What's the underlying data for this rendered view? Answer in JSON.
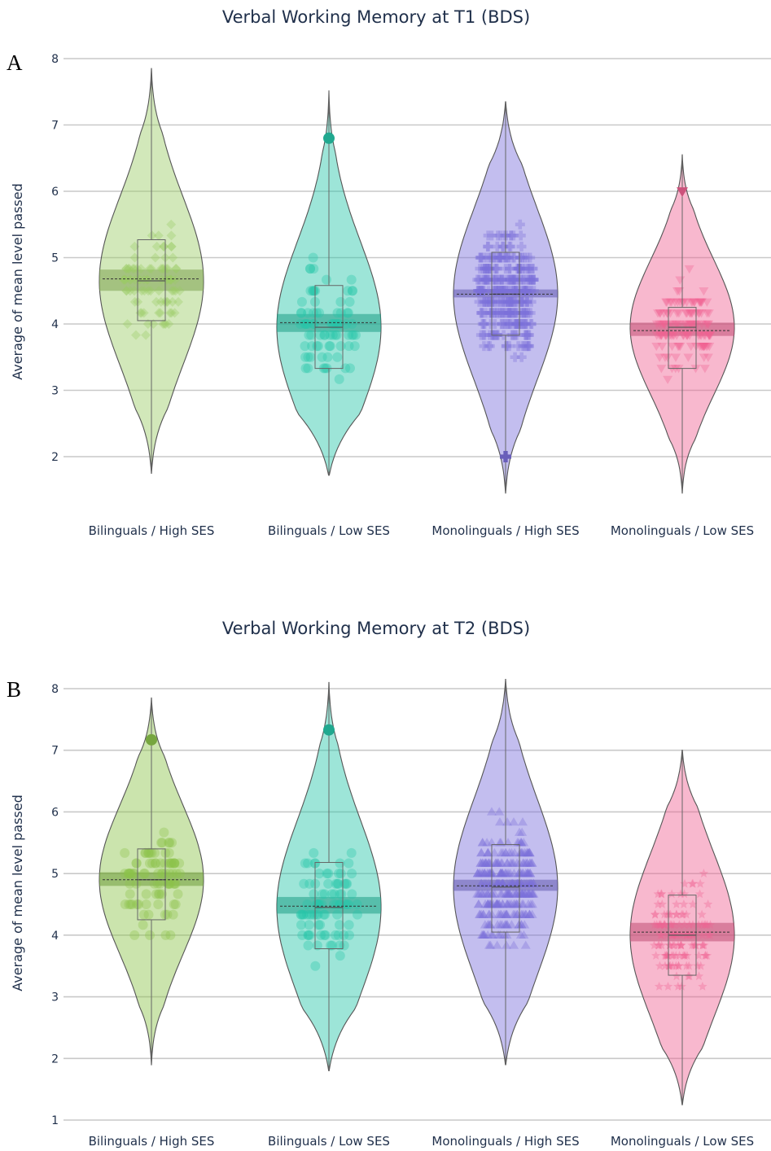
{
  "chart_data": [
    {
      "panel_label": "A",
      "type": "violin",
      "title": "Verbal Working Memory at T1 (BDS)",
      "ylabel": "Average of mean level passed",
      "xlabel": "",
      "ylim": [
        1.55,
        8.1
      ],
      "yticks": [
        2,
        3,
        4,
        5,
        6,
        7,
        8
      ],
      "grid": true,
      "categories": [
        "Bilinguals / High SES",
        "Bilinguals / Low SES",
        "Monolinguals / High SES",
        "Monolinguals / Low SES"
      ],
      "series": [
        {
          "category": "Bilinguals / High SES",
          "color": "#9ccc65",
          "marker": "diamond",
          "kde_min": 1.75,
          "kde_max": 7.85,
          "median": 4.65,
          "q1": 4.05,
          "q3": 5.27,
          "mean": 4.68,
          "ci": [
            4.5,
            4.82
          ],
          "outlier": null,
          "point_min": 2.5,
          "point_max": 7.1,
          "n_points": 90
        },
        {
          "category": "Bilinguals / Low SES",
          "color": "#26c6a8",
          "marker": "circle",
          "kde_min": 1.72,
          "kde_max": 7.52,
          "median": 3.95,
          "q1": 3.33,
          "q3": 4.58,
          "mean": 4.02,
          "ci": [
            3.88,
            4.15
          ],
          "outlier": 6.8,
          "point_min": 2.5,
          "point_max": 6.3,
          "n_points": 80
        },
        {
          "category": "Monolinguals / High SES",
          "color": "#7b6fdb",
          "marker": "cross",
          "kde_min": 1.45,
          "kde_max": 7.35,
          "median": 4.45,
          "q1": 3.83,
          "q3": 5.08,
          "mean": 4.45,
          "ci": [
            4.4,
            4.52
          ],
          "outlier": 2.0,
          "point_min": 2.8,
          "point_max": 6.7,
          "n_points": 320
        },
        {
          "category": "Monolinguals / Low SES",
          "color": "#f06292",
          "marker": "triangle-down",
          "kde_min": 1.45,
          "kde_max": 6.55,
          "median": 3.95,
          "q1": 3.33,
          "q3": 4.25,
          "mean": 3.9,
          "ci": [
            3.82,
            4.02
          ],
          "outlier": 6.0,
          "point_min": 2.0,
          "point_max": 5.6,
          "n_points": 130
        }
      ]
    },
    {
      "panel_label": "B",
      "type": "violin",
      "title": "Verbal Working Memory at T2 (BDS)",
      "ylabel": "Average of mean level passed",
      "xlabel": "",
      "ylim": [
        1.0,
        8.1
      ],
      "yticks": [
        1,
        2,
        3,
        4,
        5,
        6,
        7,
        8
      ],
      "grid": true,
      "categories": [
        "Bilinguals / High SES",
        "Bilinguals / Low SES",
        "Monolinguals / High SES",
        "Monolinguals / Low SES"
      ],
      "series": [
        {
          "category": "Bilinguals / High SES",
          "color": "#8bc34a",
          "marker": "circle",
          "kde_min": 1.9,
          "kde_max": 7.85,
          "median": 4.9,
          "q1": 4.25,
          "q3": 5.4,
          "mean": 4.9,
          "ci": [
            4.8,
            5.02
          ],
          "outlier": 7.17,
          "point_min": 2.55,
          "point_max": 6.95,
          "n_points": 90
        },
        {
          "category": "Bilinguals / Low SES",
          "color": "#26c6a8",
          "marker": "circle",
          "kde_min": 1.8,
          "kde_max": 8.1,
          "median": 4.45,
          "q1": 3.78,
          "q3": 5.18,
          "mean": 4.47,
          "ci": [
            4.35,
            4.62
          ],
          "outlier": 7.33,
          "point_min": 2.65,
          "point_max": 7.0,
          "n_points": 85
        },
        {
          "category": "Monolinguals / High SES",
          "color": "#7b6fdb",
          "marker": "triangle-up",
          "kde_min": 1.9,
          "kde_max": 8.15,
          "median": 4.78,
          "q1": 4.05,
          "q3": 5.47,
          "mean": 4.8,
          "ci": [
            4.72,
            4.9
          ],
          "outlier": null,
          "point_min": 2.5,
          "point_max": 7.5,
          "n_points": 320
        },
        {
          "category": "Monolinguals / Low SES",
          "color": "#f06292",
          "marker": "star",
          "kde_min": 1.25,
          "kde_max": 7.0,
          "median": 4.0,
          "q1": 3.35,
          "q3": 4.65,
          "mean": 4.05,
          "ci": [
            3.9,
            4.2
          ],
          "outlier": null,
          "point_min": 2.0,
          "point_max": 6.3,
          "n_points": 130
        }
      ]
    }
  ]
}
